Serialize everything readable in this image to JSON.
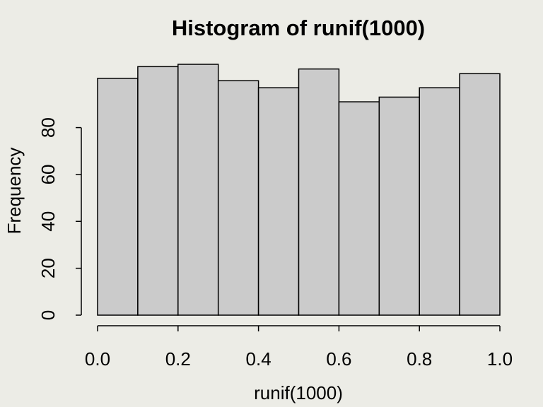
{
  "chart_data": {
    "type": "histogram",
    "title": "Histogram of runif(1000)",
    "x_label": "runif(1000)",
    "y_label": "Frequency",
    "bins": [
      0,
      0.1,
      0.2,
      0.3,
      0.4,
      0.5,
      0.6,
      0.7,
      0.8,
      0.9,
      1.0
    ],
    "values": [
      101,
      106,
      107,
      100,
      97,
      105,
      91,
      93,
      97,
      103
    ],
    "color": "#cbcbcb",
    "xlim": [
      0,
      1
    ],
    "xticks": [
      {
        "value": 0,
        "label": "0.0"
      },
      {
        "value": 0.2,
        "label": "0.2"
      },
      {
        "value": 0.4,
        "label": "0.4"
      },
      {
        "value": 0.6,
        "label": "0.6"
      },
      {
        "value": 0.8,
        "label": "0.8"
      },
      {
        "value": 1,
        "label": "1.0"
      }
    ],
    "ylim": [
      0,
      107
    ],
    "yticks": [
      0,
      20,
      40,
      60,
      80
    ]
  }
}
